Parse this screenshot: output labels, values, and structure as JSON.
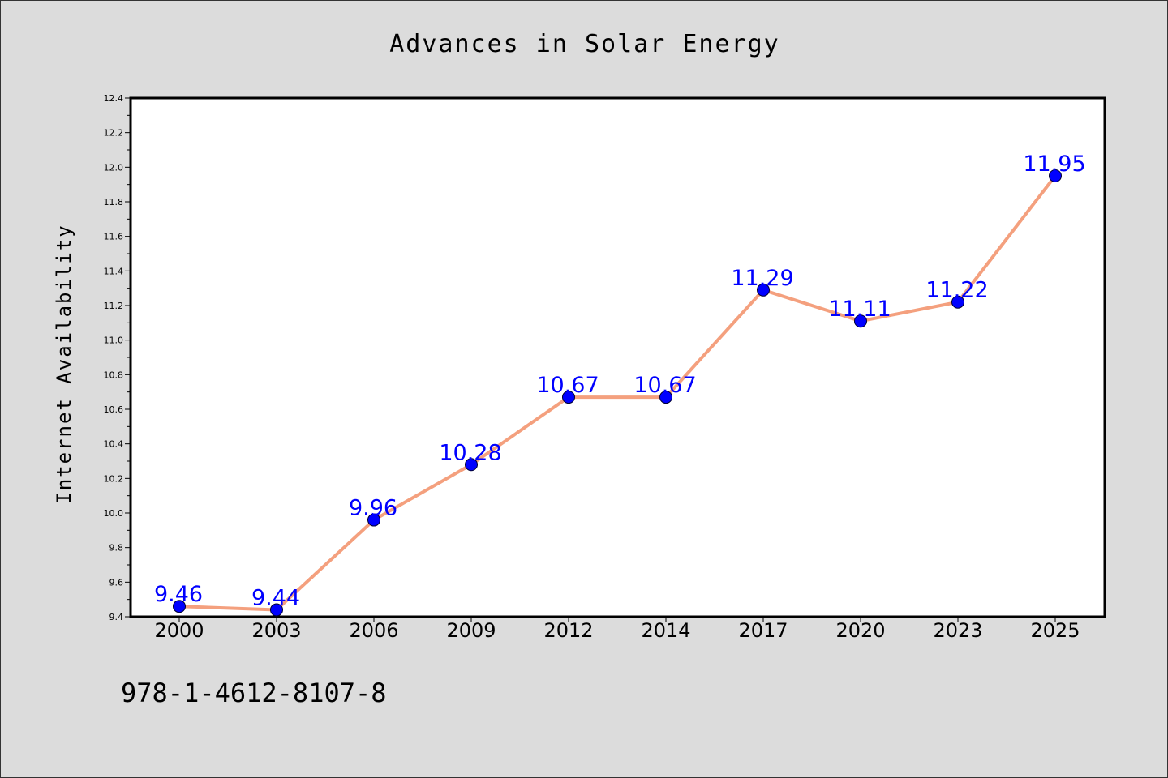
{
  "chart_data": {
    "type": "line",
    "title": "Advances in Solar Energy",
    "xlabel": "",
    "ylabel": "Internet Availability",
    "categories": [
      "2000",
      "2003",
      "2006",
      "2009",
      "2012",
      "2014",
      "2017",
      "2020",
      "2023",
      "2025"
    ],
    "series": [
      {
        "values": [
          9.46,
          9.44,
          9.96,
          10.28,
          10.67,
          10.67,
          11.29,
          11.11,
          11.22,
          11.95
        ],
        "labels": [
          "9.46",
          "9.44",
          "9.96",
          "10.28",
          "10.67",
          "10.67",
          "11.29",
          "11.11",
          "11.22",
          "11.95"
        ],
        "line_color": "#f4a07e",
        "marker_color": "#0000ff"
      }
    ],
    "ylim": [
      9.4,
      12.4
    ],
    "yticks": [
      "9.4",
      "9.6",
      "9.8",
      "10.0",
      "10.2",
      "10.4",
      "10.6",
      "10.8",
      "11.0",
      "11.2",
      "11.4",
      "11.6",
      "11.8",
      "12.0",
      "12.2",
      "12.4"
    ],
    "grid": false,
    "legend": "none"
  },
  "footer": {
    "isbn": "978-1-4612-8107-8"
  },
  "colors": {
    "background": "#dcdcdc",
    "plot_background": "#ffffff",
    "line": "#f4a07e",
    "marker": "#0000ff",
    "data_label": "#0000ff"
  }
}
